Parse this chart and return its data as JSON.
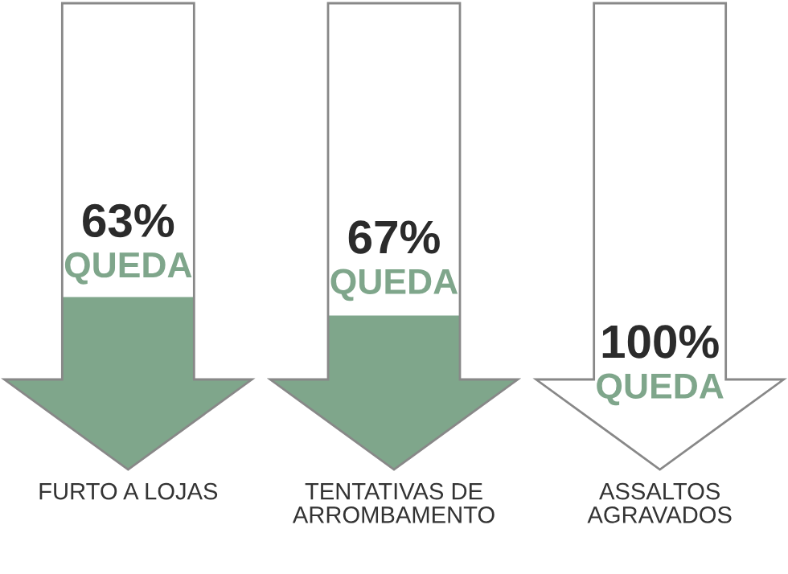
{
  "chart_data": {
    "type": "other",
    "categories": [
      "FURTO A LOJAS",
      "TENTATIVAS DE\nARROMBAMENTO",
      "ASSALTOS\nAGRAVADOS"
    ],
    "values": [
      63,
      67,
      100
    ],
    "value_labels": [
      "63%\nQUEDA",
      "67%\nQUEDA",
      "100%\nQUEDA"
    ],
    "color": "#7fa68b"
  }
}
